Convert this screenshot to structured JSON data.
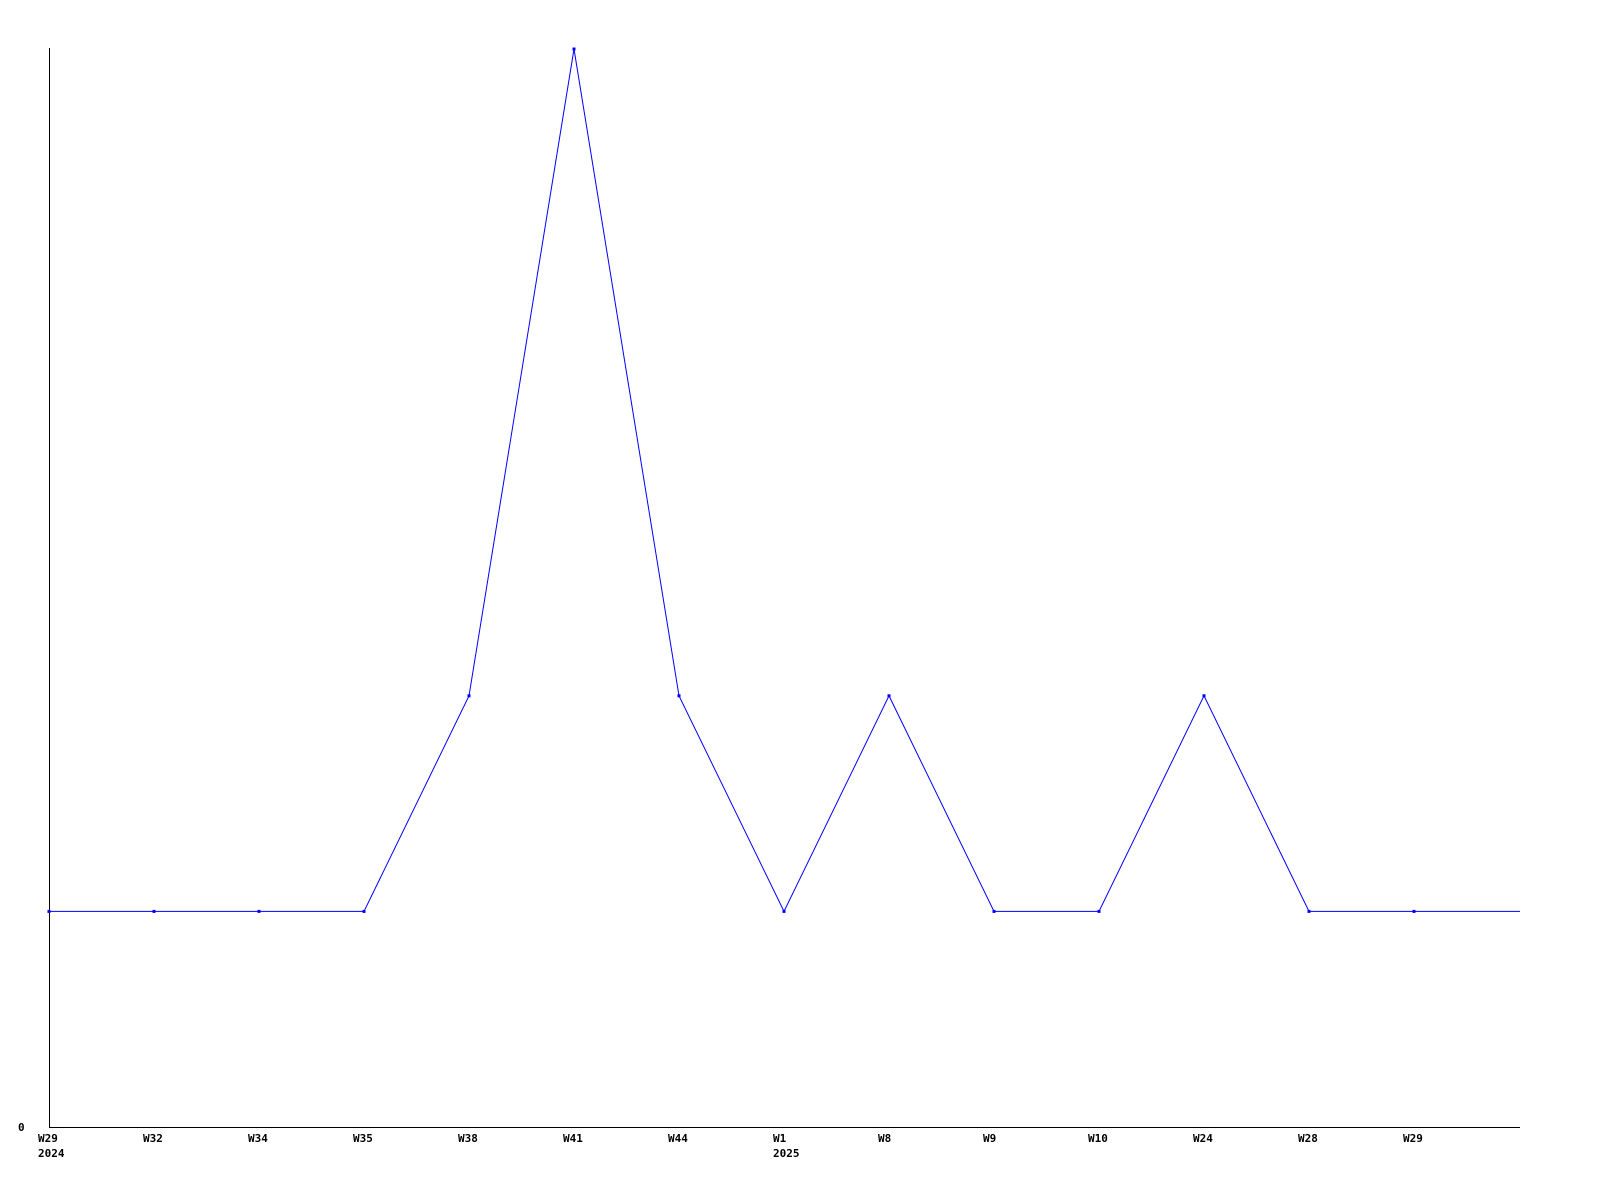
{
  "chart_data": {
    "type": "line",
    "title": "",
    "xlabel": "",
    "ylabel": "",
    "categories": [
      "W29",
      "W32",
      "W34",
      "W35",
      "W38",
      "W41",
      "W44",
      "W1",
      "W8",
      "W9",
      "W10",
      "W24",
      "W28",
      "W29"
    ],
    "year_labels": [
      {
        "index": 0,
        "label": "2024"
      },
      {
        "index": 7,
        "label": "2025"
      }
    ],
    "series": [
      {
        "values": [
          1,
          1,
          1,
          1,
          2,
          5,
          2,
          1,
          2,
          1,
          1,
          2,
          1,
          1
        ],
        "color": "#0000ff"
      }
    ],
    "y_tick_labels": [
      "0"
    ],
    "ylim": [
      0,
      5
    ],
    "grid": false,
    "legend": "none"
  }
}
